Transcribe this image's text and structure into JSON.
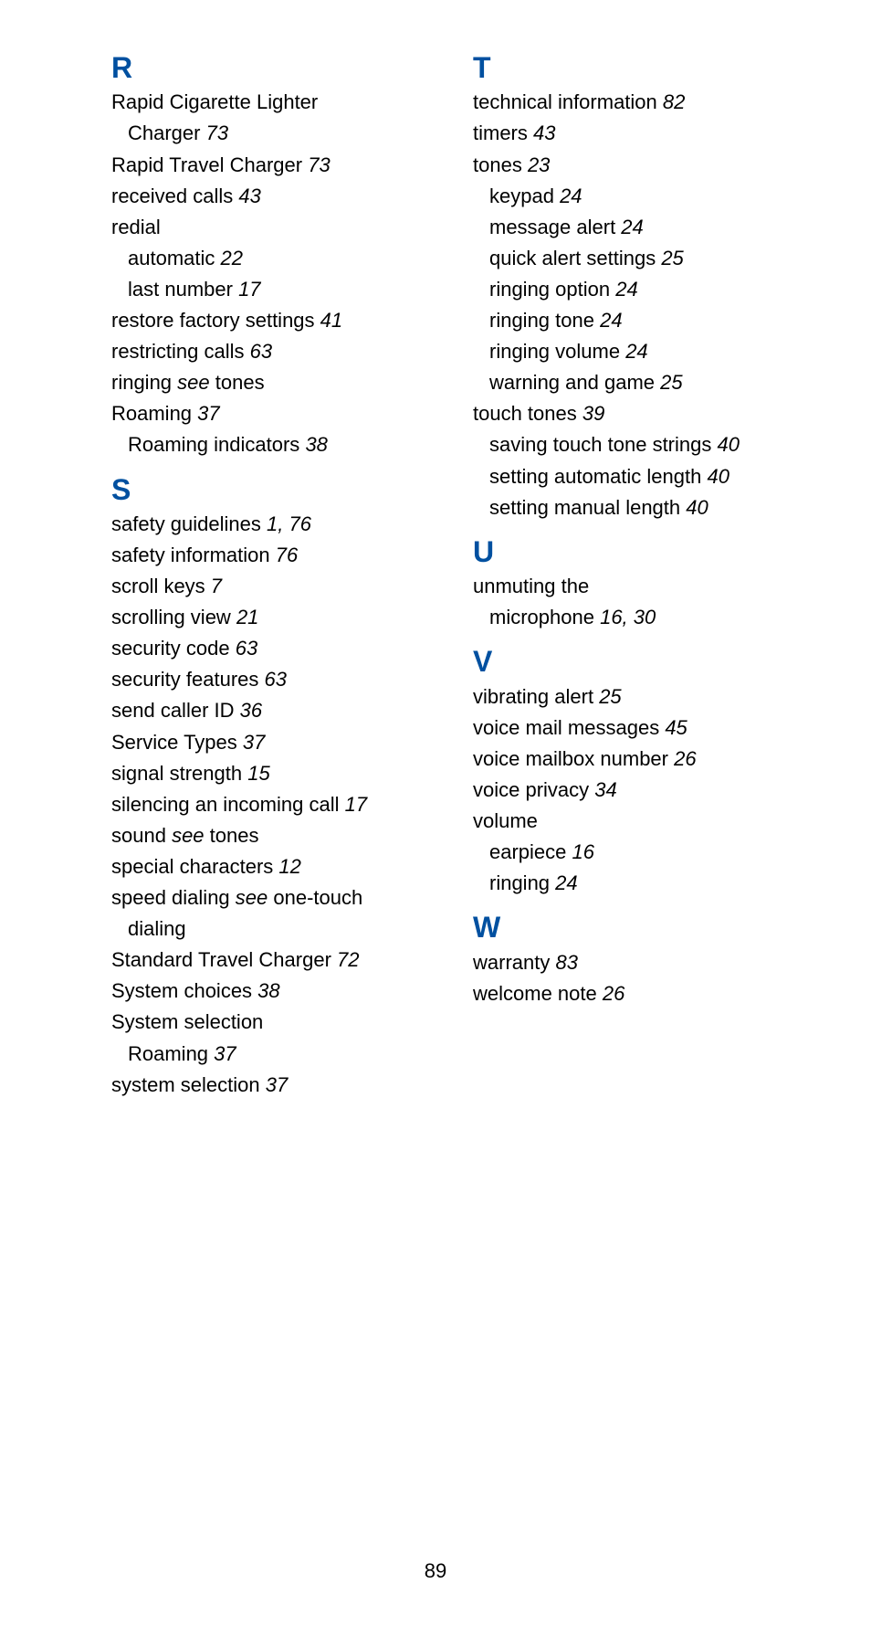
{
  "page_number": "89",
  "colors": {
    "heading": "#0050a0",
    "text": "#000000",
    "background": "#ffffff"
  },
  "left_column": [
    {
      "type": "letter",
      "text": "R"
    },
    {
      "type": "entry",
      "term": "Rapid Cigarette Lighter"
    },
    {
      "type": "sub",
      "term": "Charger ",
      "pages": "73"
    },
    {
      "type": "entry",
      "term": "Rapid Travel Charger ",
      "pages": "73"
    },
    {
      "type": "entry",
      "term": "received calls ",
      "pages": "43"
    },
    {
      "type": "entry",
      "term": "redial"
    },
    {
      "type": "sub",
      "term": "automatic ",
      "pages": "22"
    },
    {
      "type": "sub",
      "term": "last number ",
      "pages": "17"
    },
    {
      "type": "entry",
      "term": "restore factory settings ",
      "pages": "41"
    },
    {
      "type": "entry",
      "term": "restricting calls ",
      "pages": "63"
    },
    {
      "type": "entry",
      "term": "ringing ",
      "see": "see",
      "after": " tones"
    },
    {
      "type": "entry",
      "term": "Roaming ",
      "pages": "37"
    },
    {
      "type": "sub",
      "term": "Roaming indicators ",
      "pages": "38"
    },
    {
      "type": "letter",
      "text": "S"
    },
    {
      "type": "entry",
      "term": "safety guidelines ",
      "pages": "1, 76"
    },
    {
      "type": "entry",
      "term": "safety information ",
      "pages": "76"
    },
    {
      "type": "entry",
      "term": "scroll keys ",
      "pages": "7"
    },
    {
      "type": "entry",
      "term": "scrolling view ",
      "pages": "21"
    },
    {
      "type": "entry",
      "term": "security code ",
      "pages": "63"
    },
    {
      "type": "entry",
      "term": "security features ",
      "pages": "63"
    },
    {
      "type": "entry",
      "term": "send caller ID ",
      "pages": "36"
    },
    {
      "type": "entry",
      "term": "Service Types ",
      "pages": "37"
    },
    {
      "type": "entry",
      "term": "signal strength ",
      "pages": "15"
    },
    {
      "type": "entry",
      "term": "silencing an incoming call ",
      "pages": "17"
    },
    {
      "type": "entry",
      "term": "sound ",
      "see": "see",
      "after": " tones"
    },
    {
      "type": "entry",
      "term": "special characters ",
      "pages": "12"
    },
    {
      "type": "entry",
      "term": "speed dialing ",
      "see": "see",
      "after": " one-touch"
    },
    {
      "type": "sub",
      "term": "dialing"
    },
    {
      "type": "entry",
      "term": "Standard Travel Charger ",
      "pages": "72"
    },
    {
      "type": "entry",
      "term": "System choices ",
      "pages": "38"
    },
    {
      "type": "entry",
      "term": "System selection"
    },
    {
      "type": "sub",
      "term": "Roaming ",
      "pages": "37"
    },
    {
      "type": "entry",
      "term": "system selection ",
      "pages": "37"
    }
  ],
  "right_column": [
    {
      "type": "letter",
      "text": "T"
    },
    {
      "type": "entry",
      "term": "technical information ",
      "pages": "82"
    },
    {
      "type": "entry",
      "term": "timers ",
      "pages": "43"
    },
    {
      "type": "entry",
      "term": "tones ",
      "pages": "23"
    },
    {
      "type": "sub",
      "term": "keypad ",
      "pages": "24"
    },
    {
      "type": "sub",
      "term": "message alert ",
      "pages": "24"
    },
    {
      "type": "sub",
      "term": "quick alert settings ",
      "pages": "25"
    },
    {
      "type": "sub",
      "term": "ringing option ",
      "pages": "24"
    },
    {
      "type": "sub",
      "term": "ringing tone ",
      "pages": "24"
    },
    {
      "type": "sub",
      "term": "ringing volume ",
      "pages": "24"
    },
    {
      "type": "sub",
      "term": "warning and game ",
      "pages": "25"
    },
    {
      "type": "entry",
      "term": "touch tones ",
      "pages": "39"
    },
    {
      "type": "sub",
      "term": "saving touch tone strings ",
      "pages": "40"
    },
    {
      "type": "sub",
      "term": "setting automatic length ",
      "pages": "40"
    },
    {
      "type": "sub",
      "term": "setting manual length ",
      "pages": "40"
    },
    {
      "type": "letter",
      "text": "U"
    },
    {
      "type": "entry",
      "term": "unmuting the"
    },
    {
      "type": "sub",
      "term": "microphone ",
      "pages": "16, 30"
    },
    {
      "type": "letter",
      "text": "V"
    },
    {
      "type": "entry",
      "term": "vibrating alert ",
      "pages": "25"
    },
    {
      "type": "entry",
      "term": "voice mail messages ",
      "pages": "45"
    },
    {
      "type": "entry",
      "term": "voice mailbox number ",
      "pages": "26"
    },
    {
      "type": "entry",
      "term": "voice privacy ",
      "pages": "34"
    },
    {
      "type": "entry",
      "term": "volume"
    },
    {
      "type": "sub",
      "term": "earpiece ",
      "pages": "16"
    },
    {
      "type": "sub",
      "term": "ringing ",
      "pages": "24"
    },
    {
      "type": "letter",
      "text": "W"
    },
    {
      "type": "entry",
      "term": "warranty ",
      "pages": "83"
    },
    {
      "type": "entry",
      "term": "welcome note ",
      "pages": "26"
    }
  ]
}
